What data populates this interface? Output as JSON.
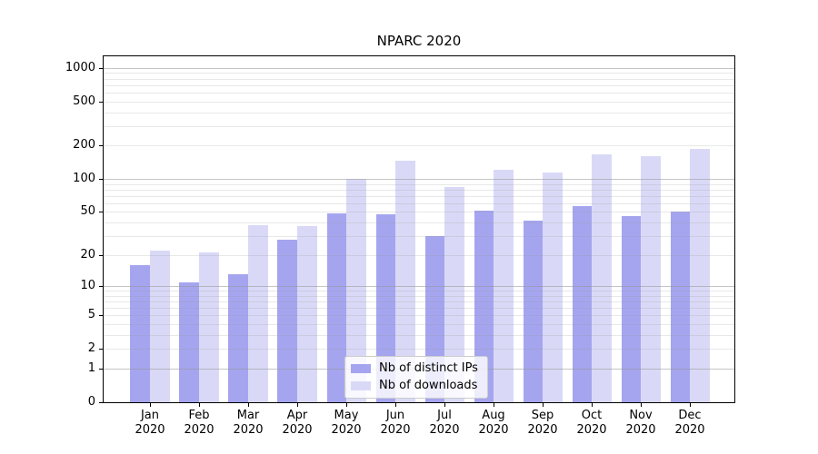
{
  "title": "NPARC 2020",
  "chart_data": {
    "type": "bar",
    "title": "NPARC 2020",
    "categories": [
      "Jan\n2020",
      "Feb\n2020",
      "Mar\n2020",
      "Apr\n2020",
      "May\n2020",
      "Jun\n2020",
      "Jul\n2020",
      "Aug\n2020",
      "Sep\n2020",
      "Oct\n2020",
      "Nov\n2020",
      "Dec\n2020"
    ],
    "series": [
      {
        "name": "Nb of distinct IPs",
        "color": "#a5a5ef",
        "values": [
          16,
          11,
          13,
          28,
          49,
          48,
          30,
          51,
          42,
          57,
          46,
          50
        ]
      },
      {
        "name": "Nb of downloads",
        "color": "#d9d9f7",
        "values": [
          22,
          21,
          38,
          37,
          100,
          145,
          85,
          122,
          115,
          167,
          160,
          188
        ]
      }
    ],
    "xlabel": "",
    "ylabel": "",
    "yticks": [
      0,
      1,
      2,
      5,
      10,
      20,
      50,
      100,
      200,
      500,
      1000
    ],
    "ylim": [
      0,
      1000
    ],
    "yscale": "log1p",
    "grid": "horizontal major+minor, drawn over bars",
    "grid_color": "#b0b0b0",
    "legend_position": "lower center"
  }
}
